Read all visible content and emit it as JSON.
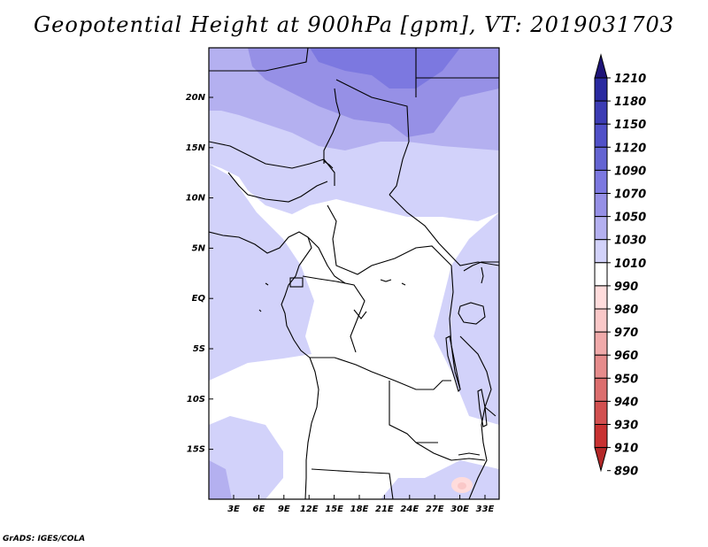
{
  "title": "Geopotential Height at 900hPa [gpm], VT: 2019031703",
  "footer": "GrADS: IGES/COLA",
  "map": {
    "lat_labels": [
      "20N",
      "15N",
      "10N",
      "5N",
      "EQ",
      "5S",
      "10S",
      "15S"
    ],
    "lon_labels": [
      "3E",
      "6E",
      "9E",
      "12E",
      "15E",
      "18E",
      "21E",
      "24E",
      "27E",
      "30E",
      "33E"
    ]
  },
  "legend": {
    "levels": [
      "1210",
      "1180",
      "1150",
      "1120",
      "1090",
      "1070",
      "1050",
      "1030",
      "1010",
      "990",
      "980",
      "970",
      "960",
      "950",
      "940",
      "930",
      "910",
      "890"
    ],
    "colors": [
      "#1e1478",
      "#2a2aa0",
      "#3c3cb4",
      "#5050c8",
      "#6464d2",
      "#7c78e0",
      "#9690e6",
      "#b4b0f0",
      "#d2d2fa",
      "#ffffff",
      "#ffdcdc",
      "#fac8c8",
      "#f0aaaa",
      "#e68c8c",
      "#dc6e6e",
      "#d25050",
      "#c83232",
      "#b42828"
    ]
  }
}
